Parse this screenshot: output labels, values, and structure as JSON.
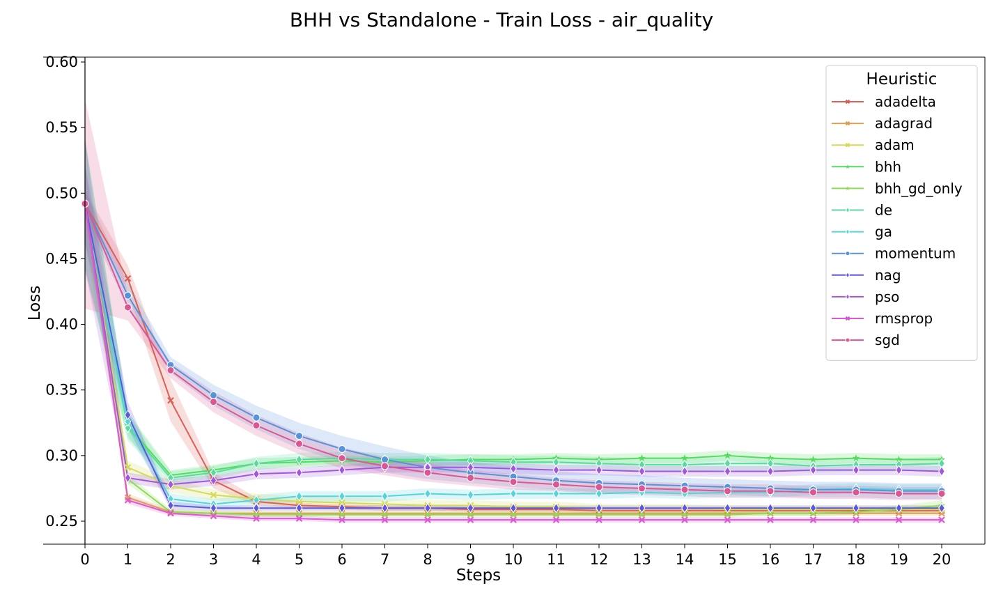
{
  "chart_data": {
    "type": "line",
    "title": "BHH vs Standalone - Train Loss - air_quality",
    "xlabel": "Steps",
    "ylabel": "Loss",
    "xlim": [
      0,
      20
    ],
    "ylim": [
      0.23,
      0.6
    ],
    "x": [
      0,
      1,
      2,
      3,
      4,
      5,
      6,
      7,
      8,
      9,
      10,
      11,
      12,
      13,
      14,
      15,
      16,
      17,
      18,
      19,
      20
    ],
    "x_ticks": [
      "0",
      "1",
      "2",
      "3",
      "4",
      "5",
      "6",
      "7",
      "8",
      "9",
      "10",
      "11",
      "12",
      "13",
      "14",
      "15",
      "16",
      "17",
      "18",
      "19",
      "20"
    ],
    "y_ticks": [
      0.25,
      0.3,
      0.35,
      0.4,
      0.45,
      0.5,
      0.55,
      0.6
    ],
    "y_tick_labels": [
      "0.25",
      "0.30",
      "0.35",
      "0.40",
      "0.45",
      "0.50",
      "0.55",
      "0.60"
    ],
    "legend": {
      "title": "Heuristic",
      "position": "top-right"
    },
    "series": [
      {
        "name": "adadelta",
        "color": "#db5f57",
        "marker": "x",
        "values": [
          0.492,
          0.435,
          0.342,
          0.281,
          0.265,
          0.262,
          0.261,
          0.26,
          0.26,
          0.259,
          0.259,
          0.259,
          0.258,
          0.258,
          0.258,
          0.258,
          0.258,
          0.258,
          0.258,
          0.258,
          0.258
        ],
        "ci": [
          0.01,
          0.01,
          0.016,
          0.006,
          0.003,
          0.002,
          0.002,
          0.002,
          0.002,
          0.002,
          0.002,
          0.002,
          0.002,
          0.002,
          0.002,
          0.002,
          0.002,
          0.002,
          0.002,
          0.002,
          0.002
        ]
      },
      {
        "name": "adagrad",
        "color": "#dba157",
        "marker": "x",
        "values": [
          0.492,
          0.268,
          0.257,
          0.256,
          0.256,
          0.256,
          0.256,
          0.256,
          0.256,
          0.256,
          0.256,
          0.256,
          0.256,
          0.256,
          0.256,
          0.256,
          0.256,
          0.256,
          0.256,
          0.256,
          0.256
        ],
        "ci": [
          0.01,
          0.003,
          0.002,
          0.002,
          0.002,
          0.002,
          0.002,
          0.002,
          0.002,
          0.002,
          0.002,
          0.002,
          0.002,
          0.002,
          0.002,
          0.002,
          0.002,
          0.002,
          0.002,
          0.002,
          0.002
        ]
      },
      {
        "name": "adam",
        "color": "#d3db57",
        "marker": "x",
        "values": [
          0.492,
          0.291,
          0.277,
          0.27,
          0.267,
          0.265,
          0.264,
          0.263,
          0.262,
          0.262,
          0.261,
          0.261,
          0.26,
          0.26,
          0.26,
          0.259,
          0.259,
          0.259,
          0.259,
          0.259,
          0.259
        ],
        "ci": [
          0.03,
          0.005,
          0.005,
          0.004,
          0.004,
          0.004,
          0.004,
          0.004,
          0.004,
          0.004,
          0.004,
          0.004,
          0.003,
          0.003,
          0.003,
          0.003,
          0.003,
          0.003,
          0.003,
          0.003,
          0.003
        ]
      },
      {
        "name": "bhh",
        "color": "#57db5f",
        "marker": "star",
        "values": [
          0.492,
          0.323,
          0.285,
          0.289,
          0.294,
          0.295,
          0.296,
          0.295,
          0.296,
          0.297,
          0.297,
          0.298,
          0.297,
          0.298,
          0.298,
          0.3,
          0.298,
          0.297,
          0.298,
          0.297,
          0.297
        ],
        "ci": [
          0.05,
          0.01,
          0.004,
          0.004,
          0.004,
          0.004,
          0.004,
          0.004,
          0.004,
          0.004,
          0.004,
          0.004,
          0.004,
          0.004,
          0.004,
          0.004,
          0.004,
          0.004,
          0.004,
          0.004,
          0.004
        ]
      },
      {
        "name": "bhh_gd_only",
        "color": "#8fdb57",
        "marker": "star",
        "values": [
          0.492,
          0.282,
          0.257,
          0.256,
          0.255,
          0.255,
          0.255,
          0.255,
          0.255,
          0.255,
          0.255,
          0.255,
          0.255,
          0.255,
          0.255,
          0.255,
          0.256,
          0.256,
          0.257,
          0.259,
          0.262
        ],
        "ci": [
          0.03,
          0.004,
          0.002,
          0.002,
          0.002,
          0.002,
          0.002,
          0.002,
          0.002,
          0.002,
          0.002,
          0.002,
          0.002,
          0.002,
          0.002,
          0.002,
          0.002,
          0.002,
          0.002,
          0.003,
          0.004
        ]
      },
      {
        "name": "de",
        "color": "#57db9f",
        "marker": "diamond",
        "values": [
          0.492,
          0.321,
          0.283,
          0.287,
          0.294,
          0.297,
          0.298,
          0.297,
          0.297,
          0.296,
          0.295,
          0.295,
          0.294,
          0.293,
          0.293,
          0.294,
          0.294,
          0.292,
          0.293,
          0.293,
          0.294
        ],
        "ci": [
          0.05,
          0.01,
          0.005,
          0.005,
          0.005,
          0.005,
          0.005,
          0.005,
          0.005,
          0.005,
          0.005,
          0.005,
          0.005,
          0.005,
          0.005,
          0.005,
          0.005,
          0.005,
          0.005,
          0.005,
          0.005
        ]
      },
      {
        "name": "ga",
        "color": "#57d3db",
        "marker": "diamond",
        "values": [
          0.492,
          0.326,
          0.267,
          0.263,
          0.266,
          0.269,
          0.269,
          0.269,
          0.271,
          0.27,
          0.271,
          0.271,
          0.271,
          0.272,
          0.271,
          0.272,
          0.272,
          0.274,
          0.275,
          0.274,
          0.274
        ],
        "ci": [
          0.05,
          0.01,
          0.004,
          0.004,
          0.004,
          0.004,
          0.004,
          0.004,
          0.004,
          0.004,
          0.004,
          0.004,
          0.004,
          0.004,
          0.004,
          0.004,
          0.004,
          0.004,
          0.004,
          0.004,
          0.004
        ]
      },
      {
        "name": "momentum",
        "color": "#5793db",
        "marker": "circle",
        "values": [
          0.492,
          0.422,
          0.369,
          0.346,
          0.329,
          0.315,
          0.305,
          0.297,
          0.291,
          0.287,
          0.284,
          0.281,
          0.279,
          0.278,
          0.277,
          0.276,
          0.275,
          0.274,
          0.274,
          0.273,
          0.273
        ],
        "ci": [
          0.01,
          0.01,
          0.006,
          0.008,
          0.009,
          0.01,
          0.01,
          0.01,
          0.009,
          0.008,
          0.008,
          0.007,
          0.007,
          0.007,
          0.006,
          0.006,
          0.006,
          0.006,
          0.006,
          0.006,
          0.006
        ]
      },
      {
        "name": "nag",
        "color": "#5f57db",
        "marker": "diamond",
        "values": [
          0.492,
          0.331,
          0.262,
          0.26,
          0.26,
          0.26,
          0.26,
          0.26,
          0.26,
          0.26,
          0.26,
          0.26,
          0.26,
          0.26,
          0.26,
          0.26,
          0.26,
          0.26,
          0.26,
          0.26,
          0.26
        ],
        "ci": [
          0.03,
          0.01,
          0.003,
          0.002,
          0.002,
          0.002,
          0.002,
          0.002,
          0.002,
          0.002,
          0.002,
          0.002,
          0.002,
          0.002,
          0.002,
          0.002,
          0.002,
          0.002,
          0.002,
          0.002,
          0.002
        ]
      },
      {
        "name": "pso",
        "color": "#a157db",
        "marker": "diamond",
        "values": [
          0.492,
          0.283,
          0.278,
          0.281,
          0.286,
          0.287,
          0.289,
          0.291,
          0.291,
          0.291,
          0.29,
          0.289,
          0.289,
          0.288,
          0.288,
          0.288,
          0.288,
          0.289,
          0.289,
          0.289,
          0.288
        ],
        "ci": [
          0.05,
          0.004,
          0.004,
          0.004,
          0.004,
          0.004,
          0.004,
          0.004,
          0.004,
          0.004,
          0.004,
          0.004,
          0.004,
          0.004,
          0.004,
          0.004,
          0.004,
          0.004,
          0.004,
          0.004,
          0.004
        ]
      },
      {
        "name": "rmsprop",
        "color": "#db57d3",
        "marker": "x",
        "values": [
          0.492,
          0.266,
          0.256,
          0.254,
          0.252,
          0.252,
          0.251,
          0.251,
          0.251,
          0.251,
          0.251,
          0.251,
          0.251,
          0.251,
          0.251,
          0.251,
          0.251,
          0.251,
          0.251,
          0.251,
          0.251
        ],
        "ci": [
          0.01,
          0.003,
          0.002,
          0.002,
          0.002,
          0.002,
          0.002,
          0.002,
          0.002,
          0.002,
          0.002,
          0.002,
          0.002,
          0.002,
          0.002,
          0.002,
          0.002,
          0.002,
          0.002,
          0.002,
          0.002
        ]
      },
      {
        "name": "sgd",
        "color": "#db5793",
        "marker": "circle",
        "values": [
          0.492,
          0.413,
          0.365,
          0.341,
          0.323,
          0.309,
          0.298,
          0.292,
          0.287,
          0.283,
          0.28,
          0.278,
          0.276,
          0.275,
          0.274,
          0.273,
          0.273,
          0.272,
          0.272,
          0.271,
          0.271
        ],
        "ci": [
          0.08,
          0.01,
          0.006,
          0.008,
          0.008,
          0.008,
          0.008,
          0.007,
          0.007,
          0.006,
          0.006,
          0.005,
          0.005,
          0.005,
          0.005,
          0.005,
          0.005,
          0.005,
          0.005,
          0.005,
          0.005
        ]
      }
    ]
  }
}
